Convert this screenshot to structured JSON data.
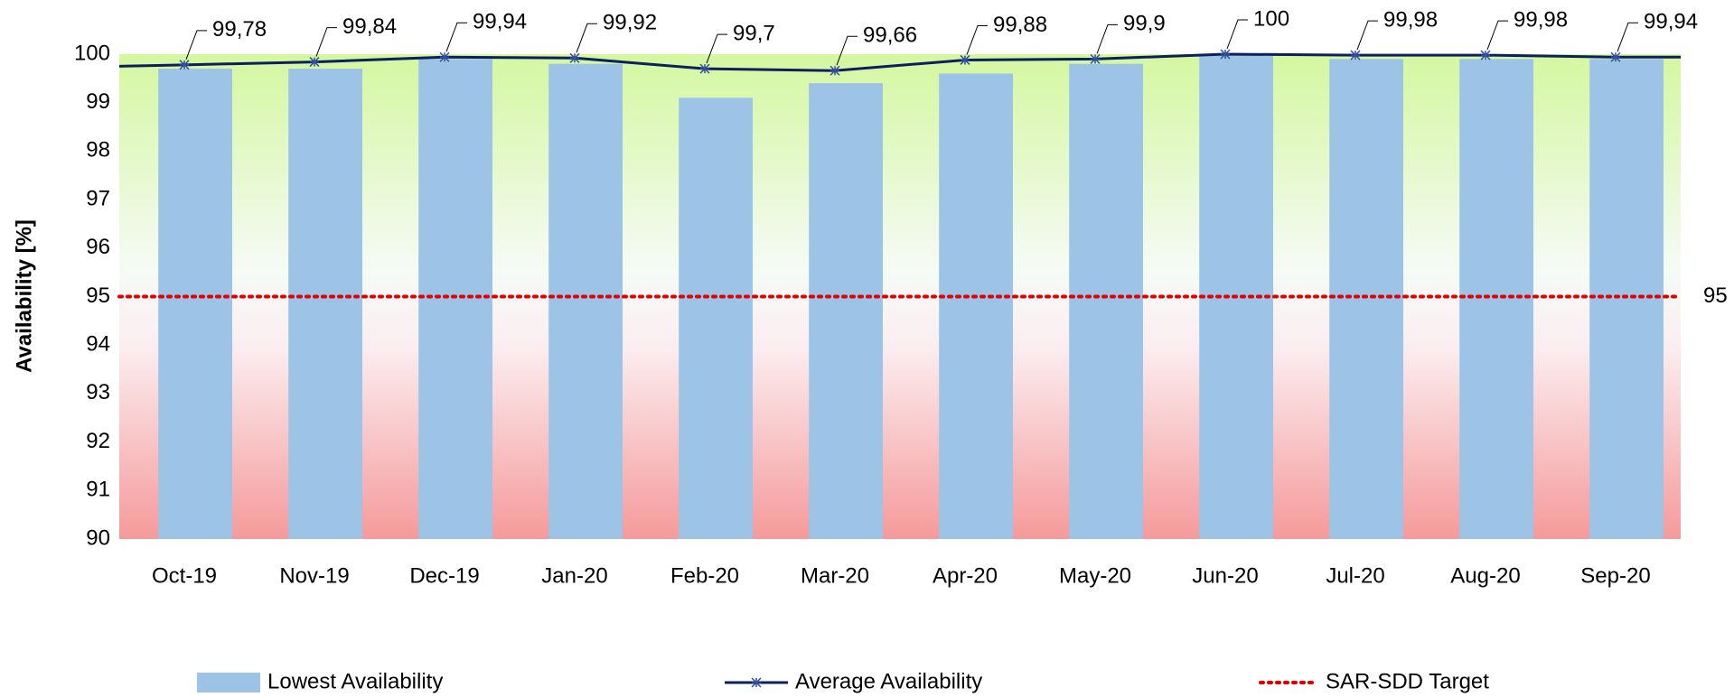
{
  "chart_data": {
    "type": "combo",
    "y_label": "Availability [%]",
    "categories": [
      "Oct-19",
      "Nov-19",
      "Dec-19",
      "Jan-20",
      "Feb-20",
      "Mar-20",
      "Apr-20",
      "May-20",
      "Jun-20",
      "Jul-20",
      "Aug-20",
      "Sep-20"
    ],
    "series": [
      {
        "name": "Lowest Availability",
        "type": "bar",
        "color": "#9dc3e6",
        "values": [
          99.7,
          99.7,
          99.9,
          99.8,
          99.1,
          99.4,
          99.6,
          99.8,
          100,
          99.9,
          99.9,
          99.9
        ]
      },
      {
        "name": "Average Availability",
        "type": "line",
        "color": "#0d1f5c",
        "values": [
          99.78,
          99.84,
          99.94,
          99.92,
          99.7,
          99.66,
          99.88,
          99.9,
          100,
          99.98,
          99.98,
          99.94
        ],
        "value_labels": [
          "99,78",
          "99,84",
          "99,94",
          "99,92",
          "99,7",
          "99,66",
          "99,88",
          "99,9",
          "100",
          "99,98",
          "99,98",
          "99,94"
        ]
      }
    ],
    "target": {
      "name": "SAR-SDD Target",
      "color": "#e00000",
      "value": 95
    },
    "ylim": [
      90,
      100
    ],
    "yticks": [
      90,
      91,
      92,
      93,
      94,
      95,
      96,
      97,
      98,
      99,
      100
    ]
  }
}
